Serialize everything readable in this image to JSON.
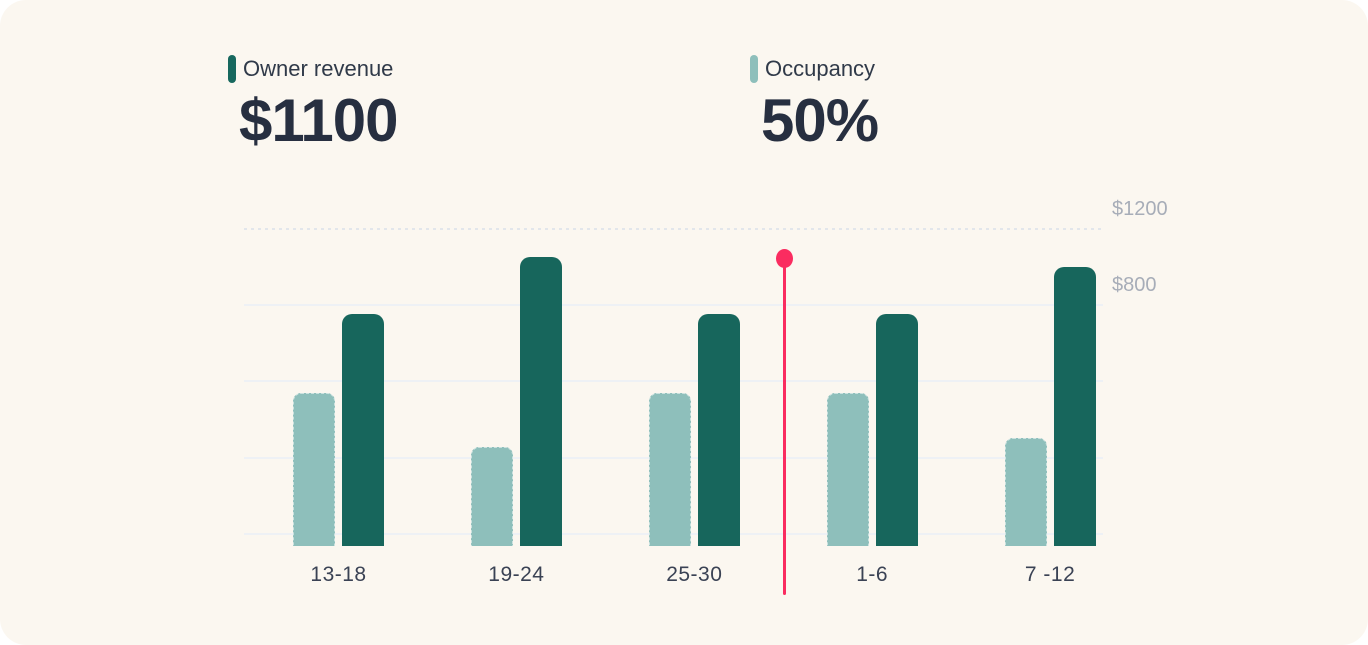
{
  "card": {
    "background": "#FBF7F0",
    "outer_background": "#FFFFFF"
  },
  "summary": {
    "owner_revenue": {
      "label": "Owner revenue",
      "value": "$1100",
      "marker_color": "#17685E"
    },
    "occupancy": {
      "label": "Occupancy",
      "value": "50%",
      "marker_color": "#8EBFBB"
    }
  },
  "chart_data": {
    "type": "bar",
    "categories": [
      "13-18",
      "19-24",
      "25-30",
      "1-6",
      "7 -12"
    ],
    "series": [
      {
        "name": "Occupancy",
        "unit": "%",
        "color": "#8EBFBB",
        "values": [
          48,
          31,
          48,
          48,
          34
        ]
      },
      {
        "name": "Owner revenue",
        "unit": "$",
        "color": "#17665C",
        "values": [
          750,
          1050,
          750,
          750,
          1000
        ]
      }
    ],
    "y_axis": {
      "side": "right",
      "tick_labels": [
        "$1200",
        "$800"
      ],
      "tick_values": [
        1200,
        800
      ],
      "label_color": "#A7ADB8"
    },
    "x_axis": {
      "label_color": "#3A4254"
    },
    "grid": {
      "line_count": 5,
      "first_line_style": "dashed",
      "solid_color": "#EEF1F5",
      "dashed_color": "#E2E6EB",
      "ylim_gridlines": [
        1200,
        -400
      ]
    },
    "today_marker": {
      "color": "#FA2C60",
      "position_between": [
        "25-30",
        "1-6"
      ]
    },
    "legend_position": "top"
  }
}
